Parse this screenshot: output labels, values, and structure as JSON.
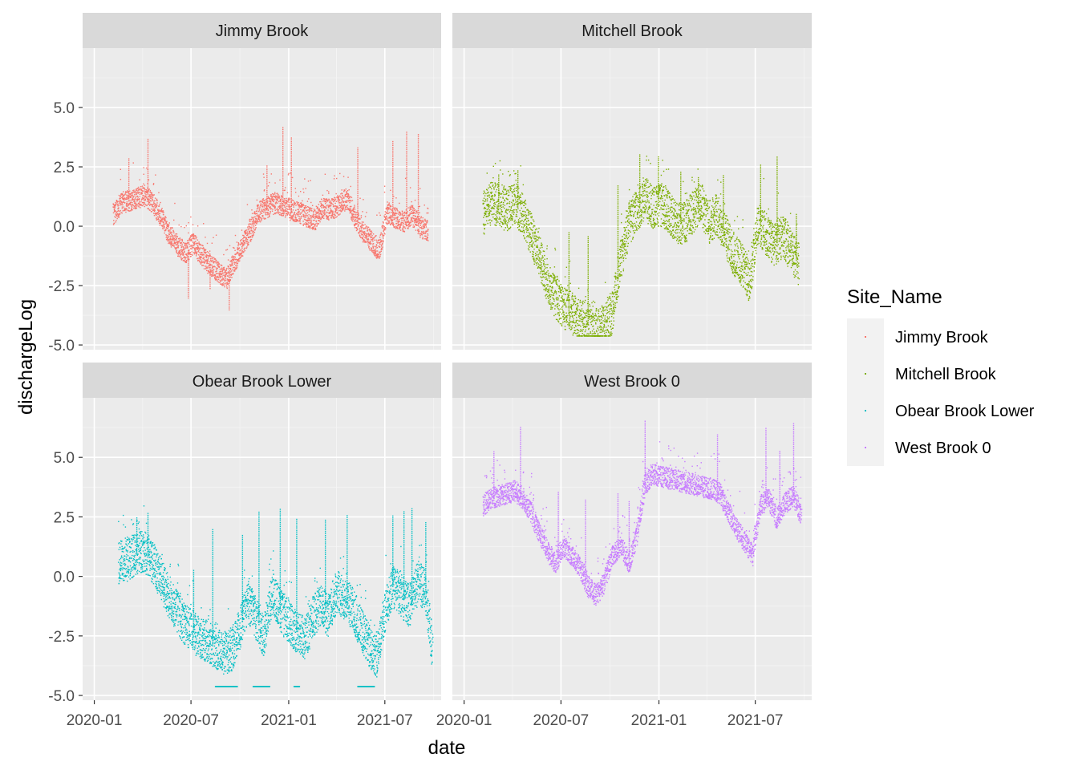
{
  "chart_data": {
    "type": "scatter",
    "facet_layout": "2x2",
    "xlabel": "date",
    "ylabel": "dischargeLog",
    "xlim": [
      "2019-12-10",
      "2021-10-15"
    ],
    "ylim": [
      -5.2,
      7.5
    ],
    "x_ticks": [
      "2020-01",
      "2020-07",
      "2021-01",
      "2021-07"
    ],
    "y_ticks": [
      "5.0",
      "2.5",
      "0.0",
      "-2.5",
      "-5.0"
    ],
    "y_tick_values": [
      5.0,
      2.5,
      0.0,
      -2.5,
      -5.0
    ],
    "grid": true,
    "legend": {
      "title": "Site_Name",
      "position": "right",
      "entries": [
        "Jimmy Brook",
        "Mitchell Brook",
        "Obear Brook Lower",
        "West Brook 0"
      ]
    },
    "panels": [
      {
        "name": "Jimmy Brook",
        "color": "#F8766D",
        "points": [
          [
            "2020-02-05",
            0.5
          ],
          [
            "2020-02-20",
            1.0
          ],
          [
            "2020-03-05",
            1.1
          ],
          [
            "2020-03-20",
            1.2
          ],
          [
            "2020-04-05",
            1.3
          ],
          [
            "2020-04-20",
            1.0
          ],
          [
            "2020-05-05",
            0.4
          ],
          [
            "2020-05-20",
            -0.3
          ],
          [
            "2020-06-05",
            -0.8
          ],
          [
            "2020-06-20",
            -1.1
          ],
          [
            "2020-07-05",
            -0.7
          ],
          [
            "2020-07-20",
            -1.2
          ],
          [
            "2020-08-05",
            -1.6
          ],
          [
            "2020-08-20",
            -1.9
          ],
          [
            "2020-09-05",
            -2.2
          ],
          [
            "2020-09-20",
            -1.5
          ],
          [
            "2020-10-05",
            -0.8
          ],
          [
            "2020-10-20",
            -0.2
          ],
          [
            "2020-11-05",
            0.6
          ],
          [
            "2020-11-20",
            0.8
          ],
          [
            "2020-12-05",
            1.0
          ],
          [
            "2020-12-20",
            0.9
          ],
          [
            "2021-01-05",
            0.7
          ],
          [
            "2021-01-20",
            0.6
          ],
          [
            "2021-02-05",
            0.4
          ],
          [
            "2021-02-20",
            0.3
          ],
          [
            "2021-03-05",
            0.8
          ],
          [
            "2021-03-20",
            0.7
          ],
          [
            "2021-04-05",
            0.9
          ],
          [
            "2021-04-20",
            1.2
          ],
          [
            "2021-05-05",
            0.4
          ],
          [
            "2021-05-20",
            -0.2
          ],
          [
            "2021-06-05",
            -0.6
          ],
          [
            "2021-06-20",
            -1.0
          ],
          [
            "2021-07-05",
            0.6
          ],
          [
            "2021-07-20",
            0.4
          ],
          [
            "2021-08-05",
            0.2
          ],
          [
            "2021-08-20",
            0.5
          ],
          [
            "2021-09-05",
            0.0
          ],
          [
            "2021-09-20",
            -0.2
          ]
        ],
        "peaks": [
          [
            "2020-03-05",
            2.9
          ],
          [
            "2020-04-10",
            3.7
          ],
          [
            "2020-06-25",
            -3.0
          ],
          [
            "2020-08-05",
            -2.6
          ],
          [
            "2020-09-10",
            -3.5
          ],
          [
            "2020-11-20",
            2.6
          ],
          [
            "2020-12-20",
            4.2
          ],
          [
            "2021-01-05",
            3.8
          ],
          [
            "2021-05-10",
            3.4
          ],
          [
            "2021-07-15",
            3.6
          ],
          [
            "2021-08-10",
            4.0
          ],
          [
            "2021-09-01",
            3.9
          ]
        ]
      },
      {
        "name": "Mitchell Brook",
        "color": "#7CAE00",
        "points": [
          [
            "2020-02-05",
            0.5
          ],
          [
            "2020-02-20",
            1.0
          ],
          [
            "2020-03-05",
            0.9
          ],
          [
            "2020-03-20",
            0.7
          ],
          [
            "2020-04-05",
            1.0
          ],
          [
            "2020-04-20",
            0.5
          ],
          [
            "2020-05-05",
            -0.3
          ],
          [
            "2020-05-20",
            -1.2
          ],
          [
            "2020-06-05",
            -2.3
          ],
          [
            "2020-06-20",
            -3.0
          ],
          [
            "2020-07-05",
            -3.4
          ],
          [
            "2020-07-20",
            -3.6
          ],
          [
            "2020-08-05",
            -3.9
          ],
          [
            "2020-08-20",
            -4.1
          ],
          [
            "2020-09-05",
            -4.3
          ],
          [
            "2020-09-20",
            -4.2
          ],
          [
            "2020-10-05",
            -3.6
          ],
          [
            "2020-10-20",
            -1.5
          ],
          [
            "2020-11-05",
            0.1
          ],
          [
            "2020-11-20",
            0.7
          ],
          [
            "2020-12-05",
            1.2
          ],
          [
            "2020-12-20",
            0.8
          ],
          [
            "2021-01-05",
            0.9
          ],
          [
            "2021-01-20",
            0.6
          ],
          [
            "2021-02-05",
            0.1
          ],
          [
            "2021-02-20",
            0.2
          ],
          [
            "2021-03-05",
            0.6
          ],
          [
            "2021-03-20",
            1.0
          ],
          [
            "2021-04-05",
            0.2
          ],
          [
            "2021-04-20",
            0.5
          ],
          [
            "2021-05-05",
            -0.3
          ],
          [
            "2021-05-20",
            -1.1
          ],
          [
            "2021-06-05",
            -1.6
          ],
          [
            "2021-06-20",
            -2.3
          ],
          [
            "2021-07-05",
            0.2
          ],
          [
            "2021-07-20",
            -0.3
          ],
          [
            "2021-08-05",
            -0.8
          ],
          [
            "2021-08-20",
            -0.4
          ],
          [
            "2021-09-05",
            -1.0
          ],
          [
            "2021-09-20",
            -1.6
          ]
        ],
        "peaks": [
          [
            "2020-03-05",
            2.2
          ],
          [
            "2020-04-10",
            2.4
          ],
          [
            "2020-07-15",
            -0.2
          ],
          [
            "2020-08-20",
            -0.4
          ],
          [
            "2020-10-15",
            1.8
          ],
          [
            "2020-11-25",
            3.1
          ],
          [
            "2020-12-30",
            3.0
          ],
          [
            "2021-02-10",
            2.3
          ],
          [
            "2021-03-15",
            2.1
          ],
          [
            "2021-05-01",
            2.2
          ],
          [
            "2021-07-10",
            2.6
          ],
          [
            "2021-08-10",
            3.0
          ],
          [
            "2021-09-15",
            0.6
          ]
        ]
      },
      {
        "name": "Obear Brook Lower",
        "color": "#00BFC4",
        "points": [
          [
            "2020-02-15",
            0.6
          ],
          [
            "2020-03-01",
            0.7
          ],
          [
            "2020-03-15",
            0.9
          ],
          [
            "2020-04-01",
            1.1
          ],
          [
            "2020-04-15",
            0.8
          ],
          [
            "2020-05-01",
            0.1
          ],
          [
            "2020-05-15",
            -0.6
          ],
          [
            "2020-06-01",
            -1.3
          ],
          [
            "2020-06-15",
            -1.9
          ],
          [
            "2020-07-01",
            -2.2
          ],
          [
            "2020-07-15",
            -2.5
          ],
          [
            "2020-08-01",
            -2.7
          ],
          [
            "2020-08-15",
            -3.0
          ],
          [
            "2020-09-01",
            -3.2
          ],
          [
            "2020-09-15",
            -3.1
          ],
          [
            "2020-10-01",
            -2.2
          ],
          [
            "2020-10-15",
            -1.0
          ],
          [
            "2020-11-01",
            -1.8
          ],
          [
            "2020-11-15",
            -2.5
          ],
          [
            "2020-12-01",
            -0.6
          ],
          [
            "2020-12-15",
            -1.4
          ],
          [
            "2021-01-01",
            -1.9
          ],
          [
            "2021-01-15",
            -2.3
          ],
          [
            "2021-02-01",
            -2.6
          ],
          [
            "2021-02-15",
            -1.7
          ],
          [
            "2021-03-01",
            -1.2
          ],
          [
            "2021-03-15",
            -1.6
          ],
          [
            "2021-04-01",
            -0.6
          ],
          [
            "2021-04-15",
            -0.9
          ],
          [
            "2021-05-01",
            -1.3
          ],
          [
            "2021-05-15",
            -2.1
          ],
          [
            "2021-06-01",
            -2.9
          ],
          [
            "2021-06-15",
            -3.3
          ],
          [
            "2021-07-01",
            -1.4
          ],
          [
            "2021-07-15",
            -0.4
          ],
          [
            "2021-08-01",
            -0.8
          ],
          [
            "2021-08-15",
            -1.3
          ],
          [
            "2021-09-01",
            -0.2
          ],
          [
            "2021-09-15",
            -0.6
          ],
          [
            "2021-09-28",
            -3.2
          ]
        ],
        "peaks": [
          [
            "2020-03-20",
            2.5
          ],
          [
            "2020-04-10",
            2.7
          ],
          [
            "2020-07-05",
            0.3
          ],
          [
            "2020-08-10",
            2.0
          ],
          [
            "2020-10-05",
            1.8
          ],
          [
            "2020-11-05",
            2.8
          ],
          [
            "2020-12-15",
            2.9
          ],
          [
            "2021-01-15",
            2.5
          ],
          [
            "2021-03-10",
            2.4
          ],
          [
            "2021-04-20",
            2.6
          ],
          [
            "2021-07-15",
            2.6
          ],
          [
            "2021-08-05",
            2.8
          ],
          [
            "2021-08-20",
            2.9
          ],
          [
            "2021-09-15",
            2.3
          ]
        ],
        "floor": [
          [
            "2020-08-15",
            "2020-09-25",
            -4.6
          ],
          [
            "2020-10-25",
            "2020-11-25",
            -4.6
          ],
          [
            "2021-01-10",
            "2021-01-20",
            -4.6
          ],
          [
            "2021-05-10",
            "2021-06-10",
            -4.6
          ]
        ]
      },
      {
        "name": "West Brook 0",
        "color": "#C77CFF",
        "points": [
          [
            "2020-02-05",
            3.0
          ],
          [
            "2020-02-20",
            3.3
          ],
          [
            "2020-03-05",
            3.4
          ],
          [
            "2020-03-20",
            3.5
          ],
          [
            "2020-04-05",
            3.6
          ],
          [
            "2020-04-20",
            3.3
          ],
          [
            "2020-05-05",
            2.7
          ],
          [
            "2020-05-20",
            1.9
          ],
          [
            "2020-06-05",
            1.1
          ],
          [
            "2020-06-20",
            0.6
          ],
          [
            "2020-07-05",
            1.3
          ],
          [
            "2020-07-20",
            0.9
          ],
          [
            "2020-08-05",
            0.4
          ],
          [
            "2020-08-20",
            -0.4
          ],
          [
            "2020-09-05",
            -0.8
          ],
          [
            "2020-09-20",
            -0.2
          ],
          [
            "2020-10-05",
            0.9
          ],
          [
            "2020-10-20",
            1.3
          ],
          [
            "2020-11-05",
            0.6
          ],
          [
            "2020-11-20",
            1.7
          ],
          [
            "2020-12-05",
            3.9
          ],
          [
            "2020-12-20",
            4.3
          ],
          [
            "2021-04-10",
            3.7
          ],
          [
            "2021-04-25",
            3.5
          ],
          [
            "2021-05-10",
            2.8
          ],
          [
            "2021-05-25",
            2.1
          ],
          [
            "2021-06-10",
            1.5
          ],
          [
            "2021-06-25",
            0.9
          ],
          [
            "2021-07-10",
            3.0
          ],
          [
            "2021-07-25",
            3.3
          ],
          [
            "2021-08-10",
            2.4
          ],
          [
            "2021-08-25",
            3.1
          ],
          [
            "2021-09-10",
            3.4
          ],
          [
            "2021-09-25",
            2.6
          ]
        ],
        "peaks": [
          [
            "2020-02-25",
            5.3
          ],
          [
            "2020-04-15",
            6.3
          ],
          [
            "2020-06-25",
            3.6
          ],
          [
            "2020-08-15",
            3.3
          ],
          [
            "2020-10-15",
            3.5
          ],
          [
            "2020-11-05",
            3.2
          ],
          [
            "2020-12-05",
            6.6
          ],
          [
            "2021-04-20",
            6.0
          ],
          [
            "2021-07-20",
            6.3
          ],
          [
            "2021-08-15",
            5.3
          ],
          [
            "2021-09-10",
            6.5
          ]
        ]
      }
    ]
  }
}
